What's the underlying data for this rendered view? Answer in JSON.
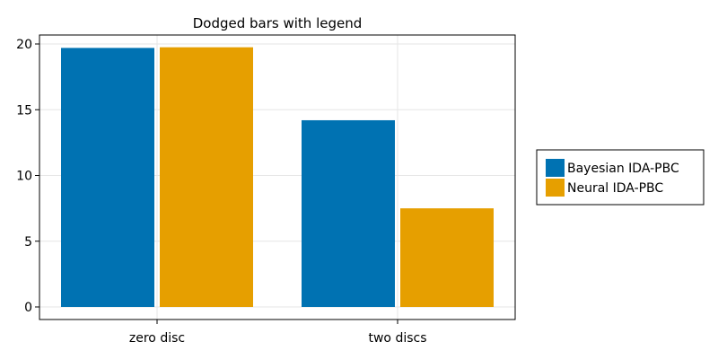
{
  "chart_data": {
    "type": "bar",
    "title": "Dodged bars with legend",
    "xlabel": "",
    "ylabel": "",
    "categories": [
      "zero disc",
      "two discs"
    ],
    "series": [
      {
        "name": "Bayesian IDA-PBC",
        "color": "#0072b2",
        "values": [
          19.7,
          14.2
        ]
      },
      {
        "name": "Neural IDA-PBC",
        "color": "#e69f00",
        "values": [
          19.75,
          7.5
        ]
      }
    ],
    "ylim": [
      -1,
      21
    ],
    "yticks": [
      0,
      5,
      10,
      15,
      20
    ],
    "grid": true,
    "legend_position": "right"
  }
}
